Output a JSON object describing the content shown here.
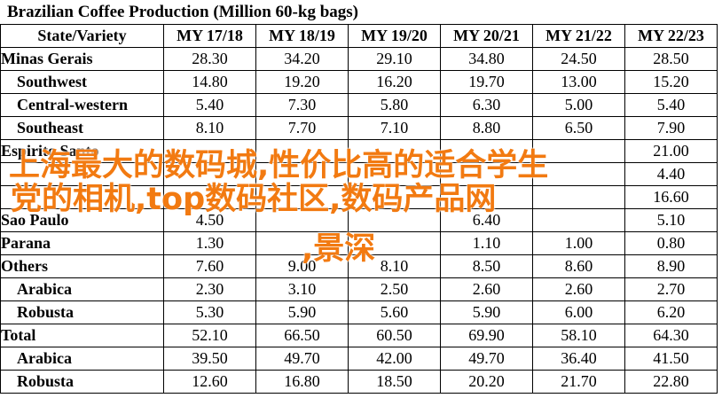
{
  "title": "Brazilian Coffee Production (Million 60-kg bags)",
  "columns": [
    "State/Variety",
    "MY 17/18",
    "MY 18/19",
    "MY 19/20",
    "MY 20/21",
    "MY 21/22",
    "MY 22/23"
  ],
  "rows": [
    {
      "label": "Minas Gerais",
      "indent": false,
      "values": [
        "28.30",
        "34.20",
        "29.10",
        "34.80",
        "24.50",
        "28.50"
      ]
    },
    {
      "label": "Southwest",
      "indent": true,
      "values": [
        "14.80",
        "19.20",
        "16.20",
        "19.70",
        "13.00",
        "15.20"
      ]
    },
    {
      "label": "Central-western",
      "indent": true,
      "values": [
        "5.40",
        "7.30",
        "5.80",
        "6.30",
        "5.00",
        "5.40"
      ]
    },
    {
      "label": "Southeast",
      "indent": true,
      "values": [
        "8.10",
        "7.70",
        "7.10",
        "8.80",
        "6.50",
        "7.90"
      ]
    },
    {
      "label": "Espirito Santo",
      "indent": false,
      "values": [
        "",
        "",
        "",
        "",
        "",
        "21.00"
      ]
    },
    {
      "label": "",
      "indent": true,
      "values": [
        "",
        "",
        "",
        "",
        "",
        "4.40"
      ]
    },
    {
      "label": "",
      "indent": true,
      "values": [
        "",
        "",
        "",
        "",
        "",
        "16.60"
      ]
    },
    {
      "label": "Sao Paulo",
      "indent": false,
      "values": [
        "4.50",
        "",
        "",
        "6.40",
        "",
        "5.10"
      ]
    },
    {
      "label": "Parana",
      "indent": false,
      "values": [
        "1.30",
        "",
        "",
        "1.10",
        "1.00",
        "0.80"
      ]
    },
    {
      "label": "Others",
      "indent": false,
      "values": [
        "7.60",
        "9.00",
        "8.10",
        "8.50",
        "8.60",
        "8.90"
      ]
    },
    {
      "label": "Arabica",
      "indent": true,
      "values": [
        "2.30",
        "3.10",
        "2.50",
        "2.60",
        "2.60",
        "2.70"
      ]
    },
    {
      "label": "Robusta",
      "indent": true,
      "values": [
        "5.30",
        "5.90",
        "5.60",
        "5.90",
        "6.00",
        "6.20"
      ]
    },
    {
      "label": "Total",
      "indent": false,
      "values": [
        "52.10",
        "66.50",
        "60.50",
        "69.90",
        "58.10",
        "64.30"
      ]
    },
    {
      "label": "Arabica",
      "indent": true,
      "values": [
        "39.50",
        "49.70",
        "42.00",
        "49.70",
        "36.40",
        "41.50"
      ]
    },
    {
      "label": "Robusta",
      "indent": true,
      "values": [
        "12.60",
        "16.80",
        "18.50",
        "20.20",
        "21.70",
        "22.80"
      ]
    }
  ],
  "watermark": {
    "line1": "上海最大的数码城,性价比高的适合学生",
    "line2": "党的相机,top数码社区,数码产品网",
    "line3": ",景深"
  },
  "colors": {
    "watermark": "#f27a11",
    "grid": "#000000",
    "background": "#ffffff"
  }
}
